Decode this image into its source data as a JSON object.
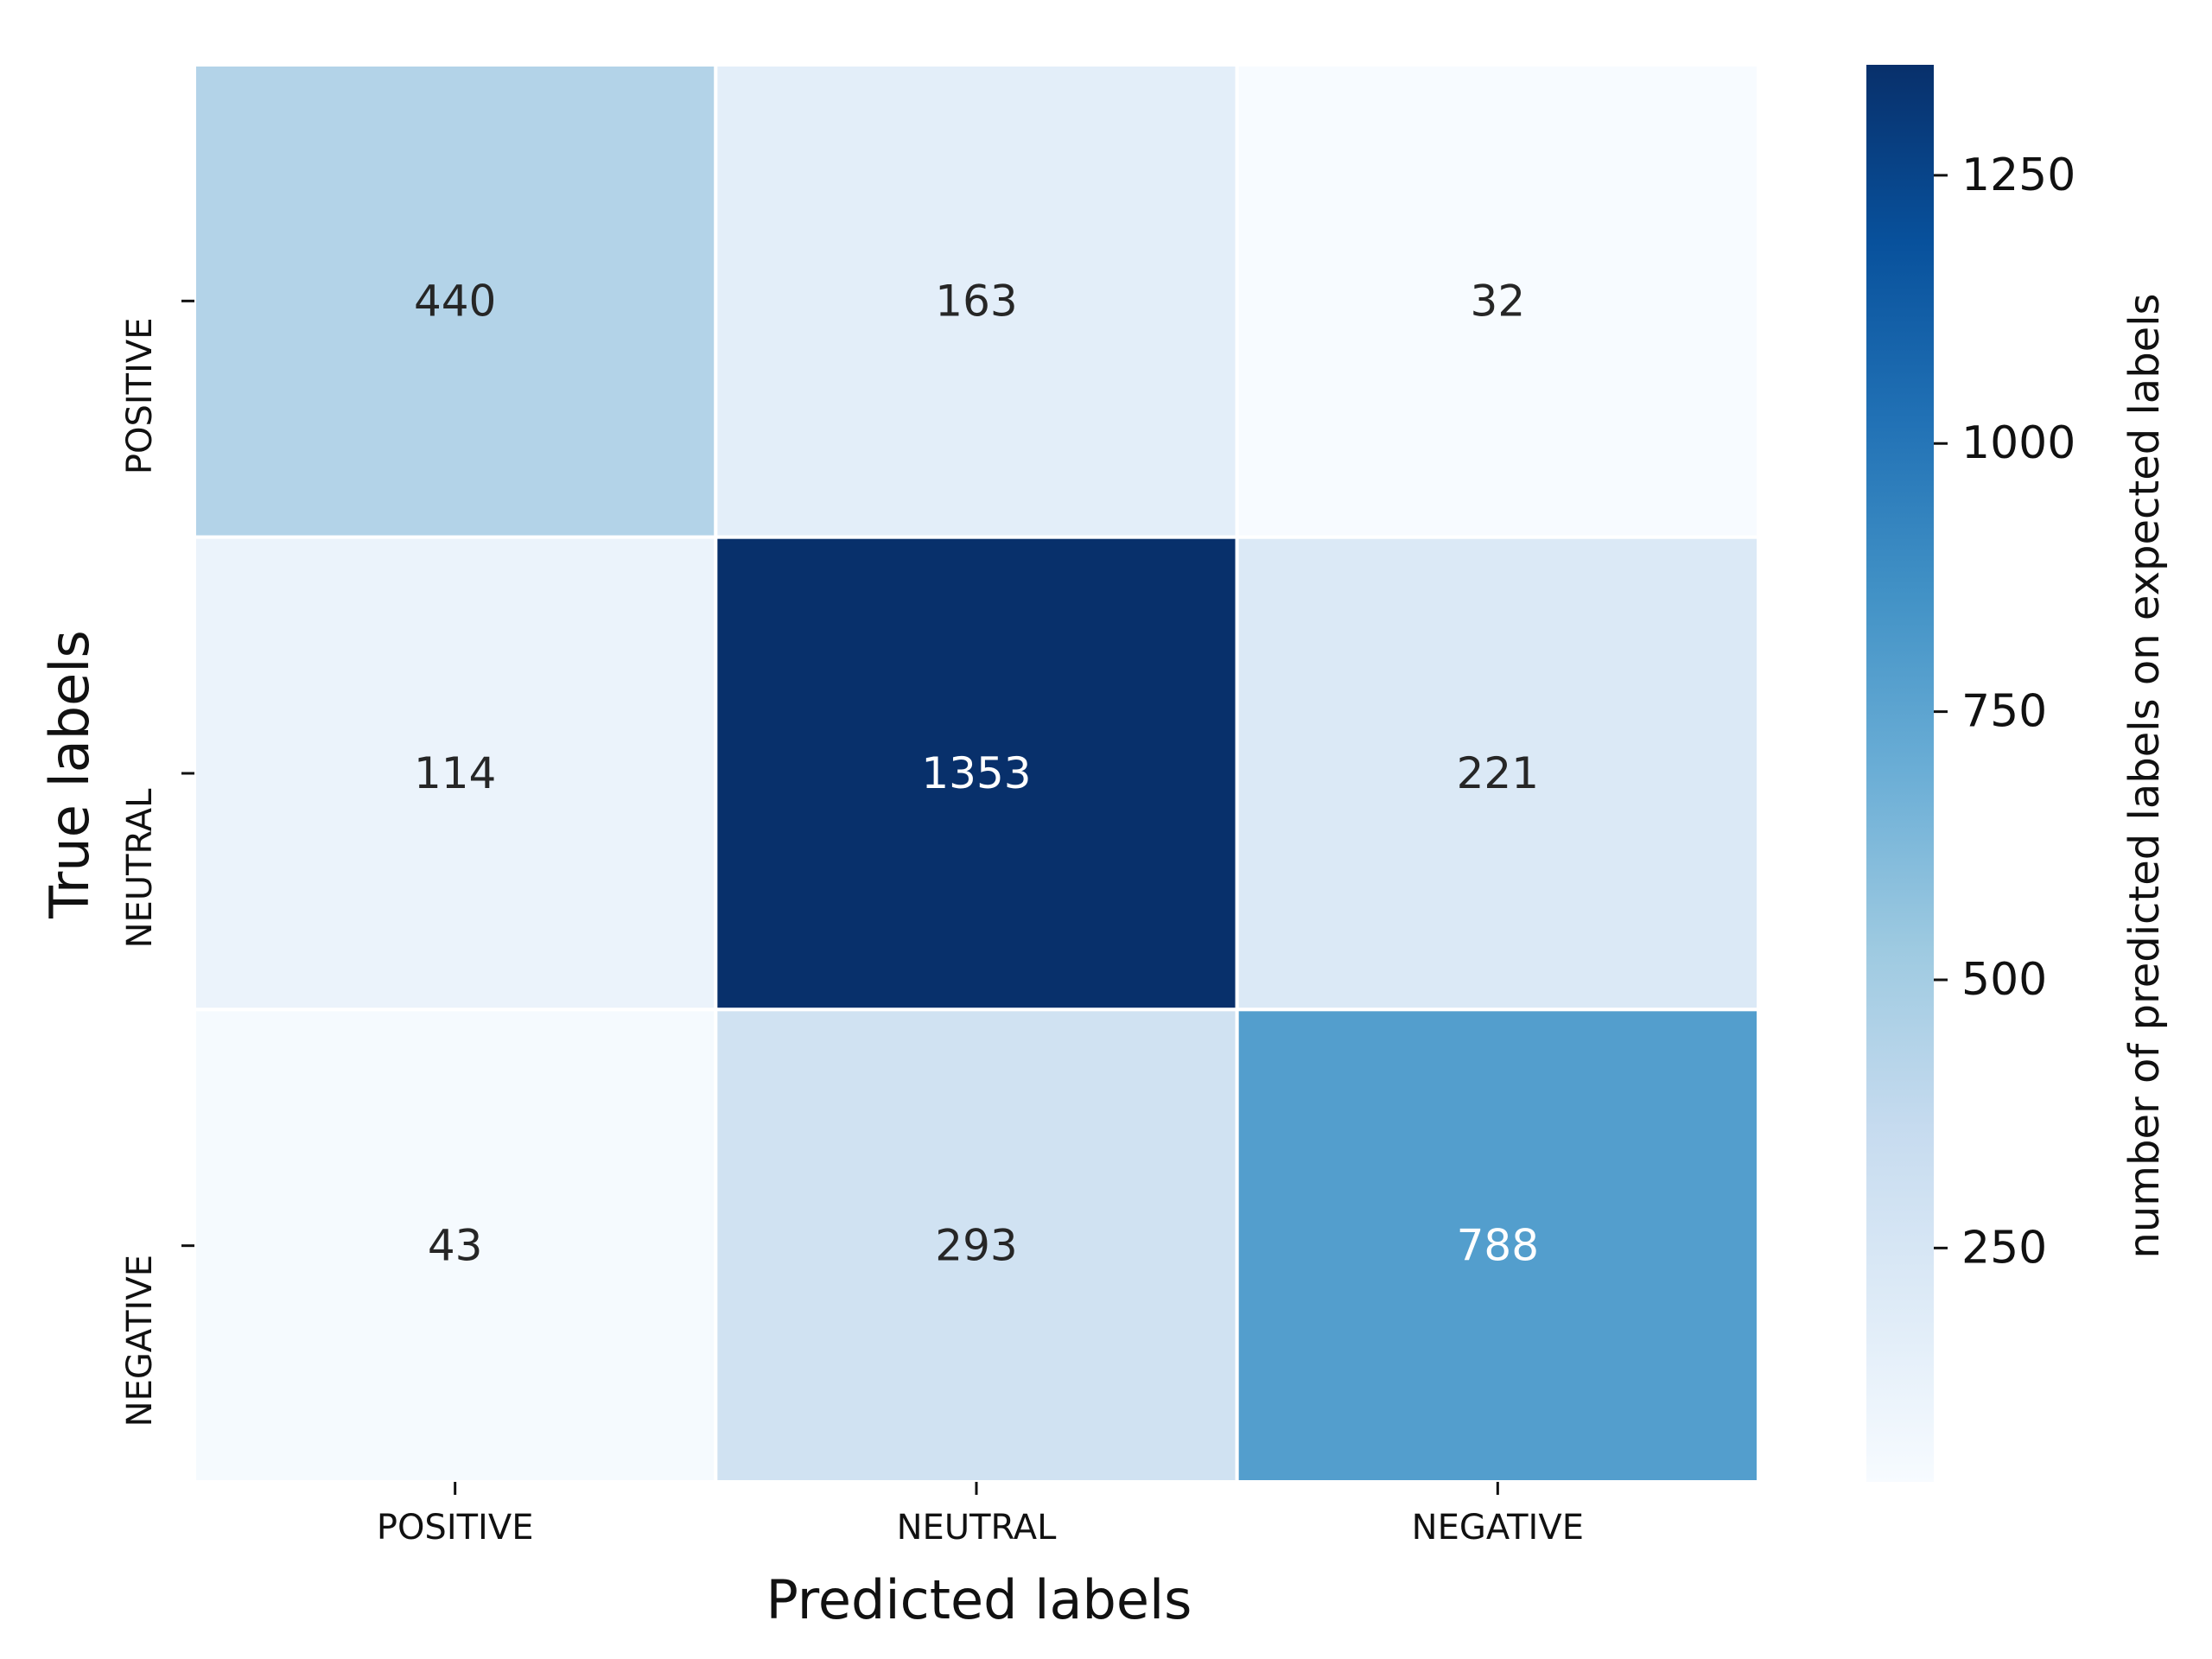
{
  "chart_data": {
    "type": "heatmap",
    "title": "",
    "xlabel": "Predicted labels",
    "ylabel": "True labels",
    "x_categories": [
      "POSITIVE",
      "NEUTRAL",
      "NEGATIVE"
    ],
    "y_categories": [
      "POSITIVE",
      "NEUTRAL",
      "NEGATIVE"
    ],
    "values": [
      [
        440,
        163,
        32
      ],
      [
        114,
        1353,
        221
      ],
      [
        43,
        293,
        788
      ]
    ],
    "colorbar": {
      "label": "number of predicted labels on expected labels",
      "ticks": [
        250,
        500,
        750,
        1000,
        1250
      ],
      "range": [
        32,
        1353
      ],
      "colormap": "Blues"
    },
    "grid": false
  }
}
